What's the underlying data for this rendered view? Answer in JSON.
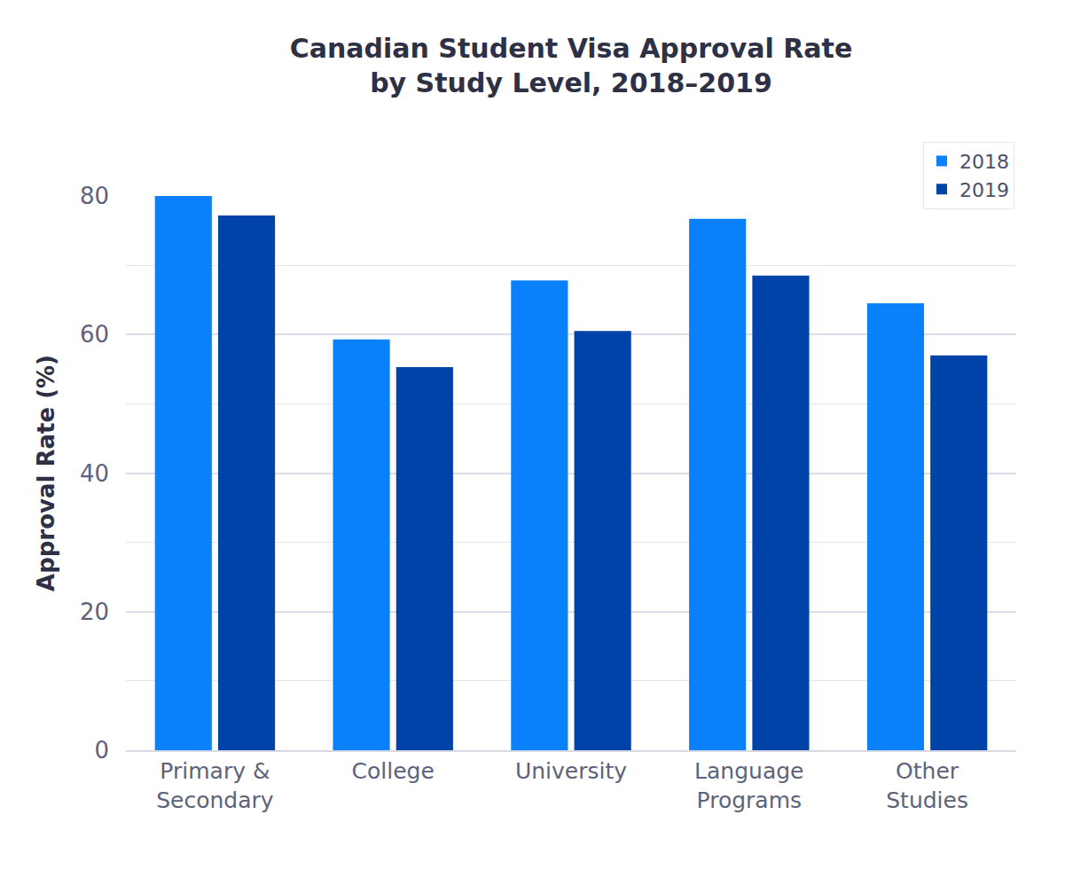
{
  "chart_data": {
    "type": "bar",
    "title": "Canadian Student Visa Approval Rate\nby Study Level, 2018–2019",
    "y_label": "Approval Rate (%)",
    "categories": [
      "Primary & Secondary",
      "College",
      "University",
      "Language Programs",
      "Other Studies"
    ],
    "series": [
      {
        "name": "2018",
        "color": "#0a80fa",
        "values": [
          80,
          59.3,
          67.8,
          76.7,
          64.5
        ]
      },
      {
        "name": "2019",
        "color": "#0043a8",
        "values": [
          77.2,
          55.3,
          60.5,
          68.5,
          57
        ]
      }
    ],
    "ylim": [
      0,
      80
    ],
    "yticks": [
      0,
      20,
      40,
      60,
      80
    ],
    "grid": true,
    "legend": "top right"
  }
}
